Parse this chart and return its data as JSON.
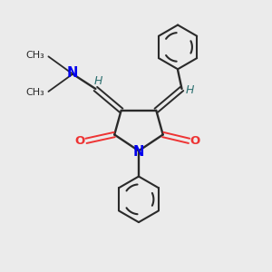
{
  "background_color": "#ebebeb",
  "bond_color": "#2a2a2a",
  "N_color": "#0000ee",
  "O_color": "#ee3333",
  "H_color": "#2d7070",
  "figsize": [
    3.0,
    3.0
  ],
  "dpi": 100,
  "xlim": [
    0,
    10
  ],
  "ylim": [
    0,
    10
  ]
}
